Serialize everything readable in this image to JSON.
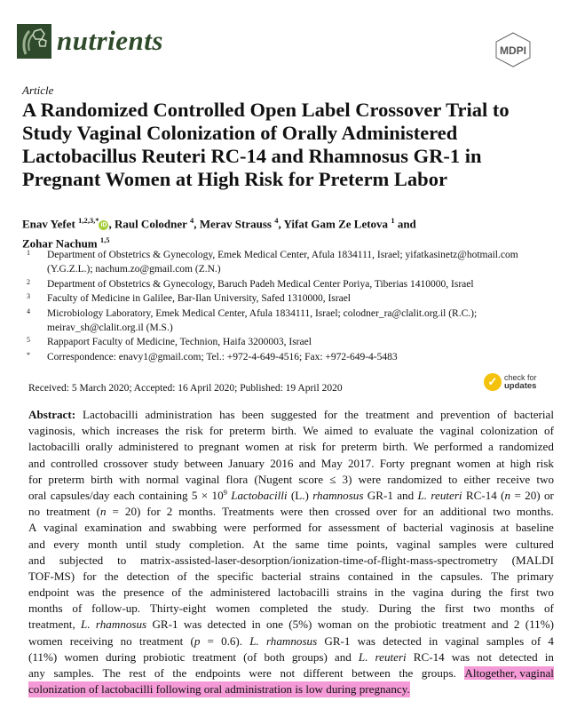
{
  "header": {
    "journal": "nutrients",
    "publisher_logo": "MDPI",
    "article_type": "Article"
  },
  "title": "A Randomized Controlled Open Label Crossover Trial to Study Vaginal Colonization of Orally Administered Lactobacillus Reuteri RC-14 and Rhamnosus GR-1 in Pregnant Women at High Risk for Preterm Labor",
  "authors": [
    {
      "name": "Enav Yefet",
      "sup": "1,2,3,*",
      "orcid": true,
      "sep": ", "
    },
    {
      "name": "Raul Colodner",
      "sup": "4",
      "sep": ", "
    },
    {
      "name": "Merav Strauss",
      "sup": "4",
      "sep": ", "
    },
    {
      "name": "Yifat Gam Ze Letova",
      "sup": "1",
      "sep": " and "
    },
    {
      "name": "Zohar Nachum",
      "sup": "1,5",
      "sep": ""
    }
  ],
  "affiliations": [
    {
      "num": "1",
      "text": "Department of Obstetrics & Gynecology, Emek Medical Center, Afula 1834111, Israel; yifatkasinetz@hotmail.com (Y.G.Z.L.); nachum.zo@gmail.com (Z.N.)"
    },
    {
      "num": "2",
      "text": "Department of Obstetrics & Gynecology, Baruch Padeh Medical Center Poriya, Tiberias 1410000, Israel"
    },
    {
      "num": "3",
      "text": "Faculty of Medicine in Galilee, Bar-Ilan University, Safed 1310000, Israel"
    },
    {
      "num": "4",
      "text": "Microbiology Laboratory, Emek Medical Center, Afula 1834111, Israel; colodner_ra@clalit.org.il (R.C.); meirav_sh@clalit.org.il (M.S.)"
    },
    {
      "num": "5",
      "text": "Rappaport Faculty of Medicine, Technion, Haifa 3200003, Israel"
    },
    {
      "num": "*",
      "text": "Correspondence: enavy1@gmail.com; Tel.: +972-4-649-4516; Fax: +972-649-4-5483"
    }
  ],
  "dates": "Received: 5 March 2020; Accepted: 16 April 2020; Published: 19 April 2020",
  "check_updates": {
    "line1": "check for",
    "line2": "updates"
  },
  "highlight_color": "#f49ad6",
  "abstract_lines": [
    [
      [
        "b",
        "Abstract:"
      ],
      [
        "n",
        " Lactobacilli administration has been suggested for the treatment and prevention of bacterial"
      ]
    ],
    [
      [
        "n",
        "vaginosis, which increases the risk for preterm birth. We aimed to evaluate the vaginal colonization of"
      ]
    ],
    [
      [
        "n",
        "lactobacilli orally administered to pregnant women at risk for preterm birth. We performed a randomized"
      ]
    ],
    [
      [
        "n",
        "and controlled crossover study between January 2016 and May 2017. Forty pregnant women at high risk"
      ]
    ],
    [
      [
        "n",
        "for preterm birth with normal vaginal flora (Nugent score ≤ 3) were randomized to either receive two"
      ]
    ],
    [
      [
        "n",
        "oral capsules/day each containing 5 × 10"
      ],
      [
        "sup",
        "9"
      ],
      [
        "n",
        " "
      ],
      [
        "i",
        "Lactobacilli"
      ],
      [
        "n",
        " (L.) "
      ],
      [
        "i",
        "rhamnosus"
      ],
      [
        "n",
        " GR-1 and "
      ],
      [
        "i",
        "L. reuteri"
      ],
      [
        "n",
        " RC-14 ("
      ],
      [
        "i",
        "n"
      ],
      [
        "n",
        " = 20) or"
      ]
    ],
    [
      [
        "n",
        "no treatment ("
      ],
      [
        "i",
        "n"
      ],
      [
        "n",
        " = 20) for 2 months. Treatments were then crossed over for an additional two months."
      ]
    ],
    [
      [
        "n",
        "A vaginal examination and swabbing were performed for assessment of bacterial vaginosis at baseline"
      ]
    ],
    [
      [
        "n",
        "and every month until study completion. At the same time points, vaginal samples were cultured"
      ]
    ],
    [
      [
        "n",
        "and subjected to matrix-assisted-laser-desorption/ionization-time-of-flight-mass-spectrometry (MALDI"
      ]
    ],
    [
      [
        "n",
        "TOF-MS) for the detection of the specific bacterial strains contained in the capsules. The primary"
      ]
    ],
    [
      [
        "n",
        "endpoint was the presence of the administered lactobacilli strains in the vagina during the first two"
      ]
    ],
    [
      [
        "n",
        "months of follow-up. Thirty-eight women completed the study. During the first two months of"
      ]
    ],
    [
      [
        "n",
        "treatment, "
      ],
      [
        "i",
        "L. rhamnosus"
      ],
      [
        "n",
        " GR-1 was detected in one (5%) woman on the probiotic treatment and 2 (11%)"
      ]
    ],
    [
      [
        "n",
        "women receiving no treatment ("
      ],
      [
        "i",
        "p"
      ],
      [
        "n",
        " = 0.6). "
      ],
      [
        "i",
        "L. rhamnosus"
      ],
      [
        "n",
        " GR-1 was detected in vaginal samples of 4"
      ]
    ],
    [
      [
        "n",
        "(11%) women during probiotic treatment (of both groups) and "
      ],
      [
        "i",
        "L. reuteri"
      ],
      [
        "n",
        " RC-14 was not detected in"
      ]
    ],
    [
      [
        "n",
        "any samples. The rest of the endpoints were not different between the groups. "
      ],
      [
        "hl",
        "Altogether, vaginal"
      ]
    ],
    [
      [
        "hl",
        "colonization of lactobacilli following oral administration is low during pregnancy."
      ]
    ]
  ]
}
